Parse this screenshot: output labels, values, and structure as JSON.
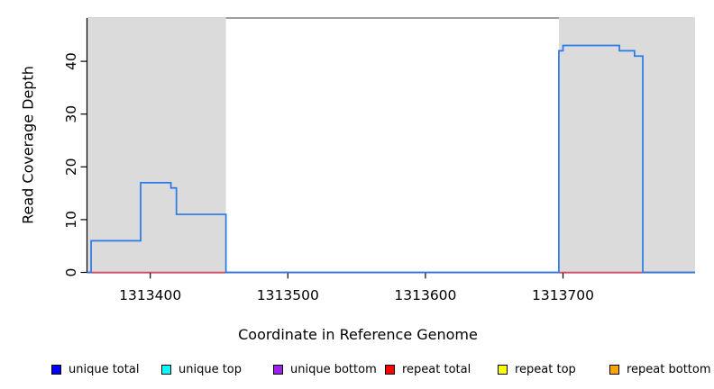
{
  "chart_data": {
    "type": "line",
    "subtype": "step-coverage",
    "title": "",
    "xlabel": "Coordinate in Reference Genome",
    "ylabel": "Read Coverage Depth",
    "x_ticks": [
      1313400,
      1313500,
      1313600,
      1313700
    ],
    "y_ticks": [
      0,
      10,
      20,
      30,
      40
    ],
    "plot_xlim": [
      1313354,
      1313796
    ],
    "ylim": [
      0,
      48
    ],
    "grid": false,
    "repeat_region_fill": "#dbdbdb",
    "top_border_color": "#7f7f7f",
    "axis_color": "#000000",
    "shaded_regions": [
      {
        "name": "repeat-region-left",
        "from": 1313354,
        "to": 1313455
      },
      {
        "name": "repeat-region-right",
        "from": 1313697,
        "to": 1313796
      }
    ],
    "series": [
      {
        "name": "repeat coverage baseline",
        "color": "#e8415f",
        "width": 1.4,
        "steps": [
          [
            1313354,
            1313796,
            0
          ]
        ]
      },
      {
        "name": "unique total coverage",
        "color": "#2979e8",
        "width": 1.7,
        "steps": [
          [
            1313354,
            1313357,
            0
          ],
          [
            1313357,
            1313393,
            6
          ],
          [
            1313393,
            1313415,
            17
          ],
          [
            1313415,
            1313419,
            16
          ],
          [
            1313419,
            1313455,
            11
          ],
          [
            1313455,
            1313697,
            0
          ],
          [
            1313697,
            1313700,
            42
          ],
          [
            1313700,
            1313741,
            43
          ],
          [
            1313741,
            1313752,
            42
          ],
          [
            1313752,
            1313758,
            41
          ],
          [
            1313758,
            1313796,
            0
          ]
        ]
      }
    ],
    "legend": {
      "position": "bottom",
      "items": [
        {
          "label": "unique total",
          "color": "#0000ff"
        },
        {
          "label": "unique top",
          "color": "#00ffff"
        },
        {
          "label": "unique bottom",
          "color": "#a020f0"
        },
        {
          "label": "repeat total",
          "color": "#ff0000"
        },
        {
          "label": "repeat top",
          "color": "#ffff00"
        },
        {
          "label": "repeat bottom",
          "color": "#ffa500"
        }
      ]
    }
  }
}
